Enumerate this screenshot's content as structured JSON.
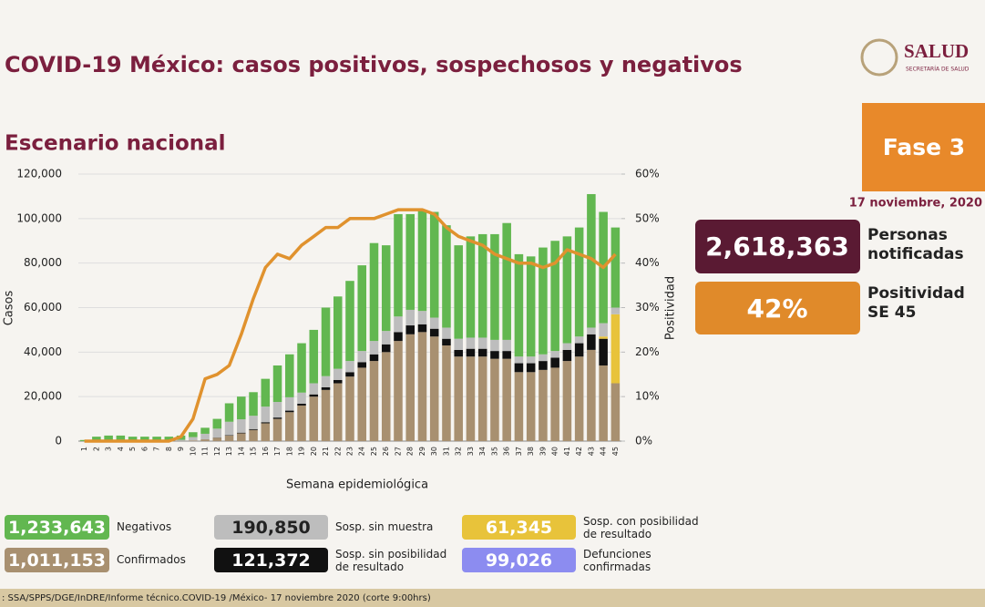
{
  "chart_data": {
    "type": "bar",
    "title": "COVID-19 México: casos positivos, sospechosos y negativos",
    "subtitle": "Escenario nacional",
    "xlabel": "Semana epidemiológica",
    "ylabel": "Casos",
    "y2label": "Positividad",
    "categories": [
      1,
      2,
      3,
      4,
      5,
      6,
      7,
      8,
      9,
      10,
      11,
      12,
      13,
      14,
      15,
      16,
      17,
      18,
      19,
      20,
      21,
      22,
      23,
      24,
      25,
      26,
      27,
      28,
      29,
      30,
      31,
      32,
      33,
      34,
      35,
      36,
      37,
      38,
      39,
      40,
      41,
      42,
      43,
      44,
      45
    ],
    "ylim": [
      0,
      120000
    ],
    "yticks": [
      0,
      {
        "value": 20000,
        "label": "20,000"
      },
      {
        "value": 40000,
        "label": "40,000"
      },
      {
        "value": 60000,
        "label": "60,000"
      },
      {
        "value": 80000,
        "label": "80,000"
      },
      {
        "value": 100000,
        "label": "100,000"
      },
      {
        "value": 120000,
        "label": "120,000"
      }
    ],
    "y2lim": [
      0,
      60
    ],
    "y2ticks": [
      {
        "value": 0,
        "label": "0%"
      },
      {
        "value": 10,
        "label": "10%"
      },
      {
        "value": 20,
        "label": "20%"
      },
      {
        "value": 30,
        "label": "30%"
      },
      {
        "value": 40,
        "label": "40%"
      },
      {
        "value": 50,
        "label": "50%"
      },
      {
        "value": 60,
        "label": "60%"
      }
    ],
    "grid": true,
    "series": [
      {
        "name": "Confirmados",
        "total": "1,011,153",
        "color": "#a89070",
        "values": [
          0,
          0,
          0,
          0,
          0,
          0,
          0,
          0,
          100,
          300,
          800,
          1500,
          2500,
          3500,
          5000,
          8000,
          10000,
          13000,
          16000,
          20000,
          23000,
          26000,
          29000,
          33000,
          36000,
          40000,
          45000,
          48000,
          49000,
          47000,
          43000,
          38000,
          38000,
          38000,
          37000,
          37000,
          31000,
          31000,
          32000,
          33000,
          36000,
          38000,
          41000,
          34000,
          26000
        ]
      },
      {
        "name": "Sosp. sin posibilidad de resultado",
        "total": "121,372",
        "color": "#111111",
        "values": [
          0,
          0,
          0,
          0,
          0,
          0,
          0,
          0,
          0,
          0,
          0,
          100,
          200,
          300,
          400,
          500,
          600,
          700,
          800,
          1000,
          1200,
          1500,
          2000,
          2500,
          3000,
          3500,
          4000,
          4000,
          3500,
          3500,
          3000,
          3000,
          3500,
          3500,
          3500,
          3500,
          4000,
          4000,
          4000,
          4500,
          5000,
          6000,
          7000,
          12000,
          0
        ]
      },
      {
        "name": "Sosp. con posibilidad de resultado",
        "total": "61,345",
        "color": "#e8c33a",
        "values": [
          0,
          0,
          0,
          0,
          0,
          0,
          0,
          0,
          0,
          0,
          0,
          0,
          0,
          0,
          0,
          0,
          0,
          0,
          0,
          0,
          0,
          0,
          0,
          0,
          0,
          0,
          0,
          0,
          0,
          0,
          0,
          0,
          0,
          0,
          0,
          0,
          0,
          0,
          0,
          0,
          0,
          0,
          0,
          1000,
          31000
        ]
      },
      {
        "name": "Sosp. sin muestra",
        "total": "190,850",
        "color": "#bdbdbd",
        "values": [
          0,
          200,
          300,
          300,
          300,
          300,
          300,
          300,
          500,
          1500,
          2500,
          4000,
          6000,
          6000,
          6000,
          7000,
          7000,
          6000,
          5000,
          5000,
          5000,
          5000,
          5000,
          5000,
          6000,
          6000,
          7000,
          7000,
          6000,
          5000,
          5000,
          5000,
          5000,
          5000,
          5000,
          5000,
          3000,
          3000,
          3000,
          3000,
          3000,
          3000,
          3000,
          6000,
          3000
        ]
      },
      {
        "name": "Negativos",
        "total": "1,233,643",
        "color": "#62b750",
        "values": [
          500,
          1800,
          2200,
          2200,
          1700,
          1700,
          1700,
          1700,
          1900,
          2200,
          2700,
          4400,
          8300,
          10200,
          10600,
          12500,
          16400,
          19300,
          22200,
          24000,
          30800,
          32500,
          36000,
          38500,
          44000,
          38500,
          46000,
          43000,
          45500,
          47500,
          46000,
          42000,
          45500,
          46500,
          47500,
          52500,
          46000,
          45000,
          48000,
          49500,
          48000,
          49000,
          60000,
          50000,
          36000
        ]
      },
      {
        "type": "line",
        "axis": "y2",
        "color": "#e0922e",
        "values": [
          0,
          0,
          0,
          0,
          0,
          0,
          0,
          0,
          1,
          5,
          14,
          15,
          17,
          24,
          32,
          39,
          42,
          41,
          44,
          46,
          48,
          48,
          50,
          50,
          50,
          51,
          52,
          52,
          52,
          51,
          48,
          46,
          45,
          44,
          42,
          41,
          40,
          40,
          39,
          40,
          43,
          42,
          41,
          39,
          42
        ]
      }
    ],
    "extra_legend": {
      "name": "Defunciones confirmadas",
      "total": "99,026",
      "color": "#8c8cf0"
    }
  },
  "header": {
    "logo_text": "SALUD",
    "logo_sub": "SECRETARÍA DE SALUD"
  },
  "panel": {
    "phase": "Fase 3",
    "date": "17 noviembre, 2020",
    "notified": "2,618,363",
    "notified_label": "Personas notificadas",
    "positivity": "42%",
    "positivity_label": "Positividad SE 45"
  },
  "footer": ": SSA/SPPS/DGE/InDRE/Informe técnico.COVID-19 /México- 17 noviembre 2020 (corte 9:00hrs)"
}
